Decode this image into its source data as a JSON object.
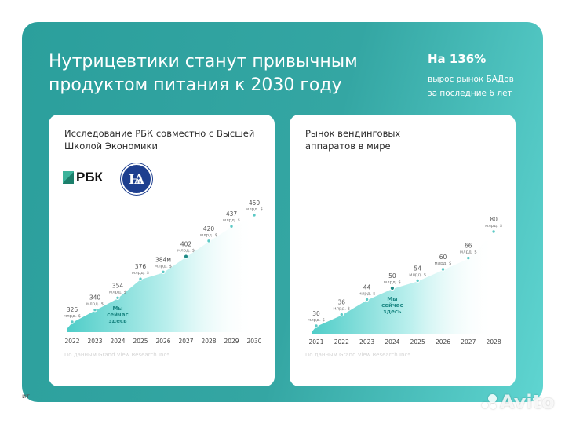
{
  "header": {
    "title": "Нутрицевтики станут привычным продуктом питания к 2030 году",
    "stat_value": "На 136%",
    "stat_text": "вырос рынок БАДов за последние 6 лет"
  },
  "colors": {
    "panel_start": "#2b9f9c",
    "panel_end": "#5fd5d1",
    "point": "#5cc9c5",
    "current_point": "#1f8a86",
    "current_label": "#1f8a86"
  },
  "left_card": {
    "title": "Исследование РБК совместно с Высшей Школой Экономики",
    "logo_rbk": "РБК",
    "logo_hse": "Ѩ",
    "source": "По данным Grand View Research Inc*"
  },
  "right_card": {
    "title": "Рынок вендинговых аппаратов в мире",
    "source": "По данным Grand View Research Inc*"
  },
  "chart_data": [
    {
      "type": "area",
      "categories": [
        "2022",
        "2023",
        "2024",
        "2025",
        "2026",
        "2027",
        "2028",
        "2029",
        "2030"
      ],
      "values": [
        326,
        340,
        354,
        376,
        384,
        402,
        420,
        437,
        450
      ],
      "value_labels": [
        "326",
        "340",
        "354",
        "376",
        "384м",
        "402",
        "420",
        "437",
        "450"
      ],
      "unit": "млрд. $",
      "highlight_index": 5,
      "annotation": "Мы сейчас здесь",
      "annotation_index": 2,
      "grid": false
    },
    {
      "type": "area",
      "categories": [
        "2021",
        "2022",
        "2023",
        "2024",
        "2025",
        "2026",
        "2027",
        "2028"
      ],
      "values": [
        30,
        36,
        44,
        50,
        54,
        60,
        66,
        80
      ],
      "value_labels": [
        "30",
        "36",
        "44",
        "50",
        "54",
        "60",
        "66",
        "80"
      ],
      "unit": "млрд. $",
      "highlight_index": 3,
      "annotation": "Мы сейчас здесь",
      "annotation_index": 3,
      "grid": false
    }
  ],
  "footer": {
    "left_text": "ит",
    "watermark": "Avito"
  }
}
